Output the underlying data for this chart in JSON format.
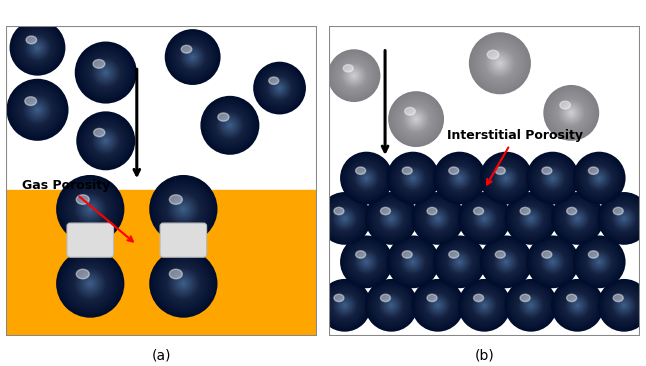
{
  "fig_width": 6.46,
  "fig_height": 3.66,
  "dpi": 100,
  "background_color": "#ffffff",
  "dark_ball_color": [
    0.08,
    0.13,
    0.25
  ],
  "dark_ball_highlight": [
    0.25,
    0.38,
    0.55
  ],
  "gray_ball_color": [
    0.58,
    0.58,
    0.6
  ],
  "gray_ball_highlight": [
    0.82,
    0.82,
    0.84
  ],
  "orange_color": "#FFA500",
  "panel_a_label": "(a)",
  "panel_b_label": "(b)",
  "gas_porosity_label": "Gas Porosity",
  "interstitial_label": "Interstitial Porosity",
  "label_fontsize": 10,
  "annot_fontsize": 9
}
